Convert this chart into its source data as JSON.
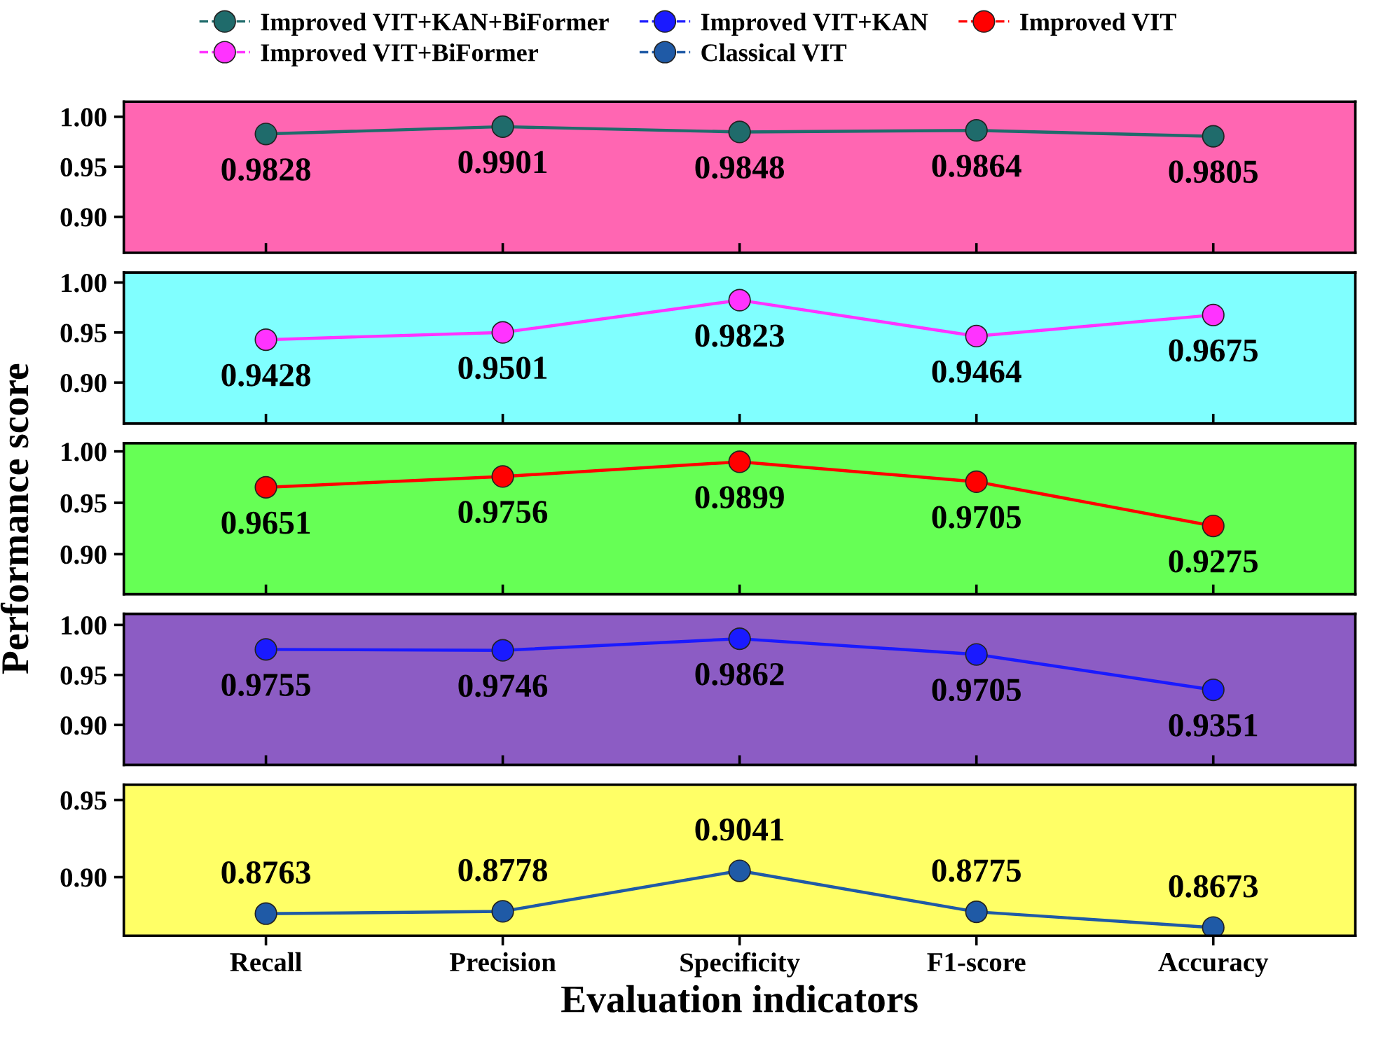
{
  "chart_data": [
    {
      "type": "line",
      "categories": [
        null,
        null,
        null,
        null,
        null
      ],
      "bands": [
        {
          "axis": "y",
          "from": 0.864,
          "to": 1.015,
          "color": "#ff66b2"
        }
      ],
      "ylim": [
        0.864,
        1.015
      ],
      "yticks": [
        {
          "value": 0.9,
          "label": "0.90"
        },
        {
          "value": 0.95,
          "label": "0.95"
        },
        {
          "value": 1.0,
          "label": "1.00"
        }
      ],
      "tick_labels": "y",
      "data_labels": true,
      "marker": "circle",
      "line_style": "solid",
      "grid": false,
      "legend": "top",
      "series": [
        {
          "name": "Improved VIT+KAN+BiFormer",
          "color": "#1f6b6b",
          "values": [
            0.9828,
            0.9901,
            0.9848,
            0.9864,
            0.9805
          ]
        }
      ]
    },
    {
      "type": "line",
      "categories": [
        null,
        null,
        null,
        null,
        null
      ],
      "bands": [
        {
          "axis": "y",
          "from": 0.859,
          "to": 1.01,
          "color": "#80ffff"
        }
      ],
      "ylim": [
        0.859,
        1.01
      ],
      "yticks": [
        {
          "value": 0.9,
          "label": "0.90"
        },
        {
          "value": 0.95,
          "label": "0.95"
        },
        {
          "value": 1.0,
          "label": "1.00"
        }
      ],
      "tick_labels": "y",
      "data_labels": true,
      "marker": "circle",
      "line_style": "solid",
      "grid": false,
      "legend": "top",
      "series": [
        {
          "name": "Improved VIT+BiFormer",
          "color": "#ff33ff",
          "values": [
            0.9428,
            0.9501,
            0.9823,
            0.9464,
            0.9675
          ]
        }
      ]
    },
    {
      "type": "line",
      "categories": [
        null,
        null,
        null,
        null,
        null
      ],
      "bands": [
        {
          "axis": "y",
          "from": 0.861,
          "to": 1.008,
          "color": "#66ff55"
        }
      ],
      "ylabel": "Performance score",
      "ylim": [
        0.861,
        1.008
      ],
      "yticks": [
        {
          "value": 0.9,
          "label": "0.90"
        },
        {
          "value": 0.95,
          "label": "0.95"
        },
        {
          "value": 1.0,
          "label": "1.00"
        }
      ],
      "tick_labels": "y",
      "data_labels": true,
      "marker": "circle",
      "line_style": "solid",
      "grid": false,
      "legend": "top",
      "series": [
        {
          "name": "Improved VIT",
          "color": "#ff0000",
          "values": [
            0.9651,
            0.9756,
            0.9899,
            0.9705,
            0.9275
          ]
        }
      ]
    },
    {
      "type": "line",
      "categories": [
        null,
        null,
        null,
        null,
        null
      ],
      "bands": [
        {
          "axis": "y",
          "from": 0.86,
          "to": 1.011,
          "color": "#8c5cc4"
        }
      ],
      "ylim": [
        0.86,
        1.011
      ],
      "yticks": [
        {
          "value": 0.9,
          "label": "0.90"
        },
        {
          "value": 0.95,
          "label": "0.95"
        },
        {
          "value": 1.0,
          "label": "1.00"
        }
      ],
      "tick_labels": "y",
      "data_labels": true,
      "marker": "circle",
      "line_style": "solid",
      "grid": false,
      "legend": "top",
      "series": [
        {
          "name": "Improved VIT+KAN",
          "color": "#1a1aff",
          "values": [
            0.9755,
            0.9746,
            0.9862,
            0.9705,
            0.9351
          ]
        }
      ]
    },
    {
      "type": "line",
      "categories": [
        "Recall",
        "Precision",
        "Specificity",
        "F1-score",
        "Accuracy"
      ],
      "bands": [
        {
          "axis": "y",
          "from": 0.862,
          "to": 0.96,
          "color": "#ffff66"
        }
      ],
      "xlabel": "Evaluation indicators",
      "ylim": [
        0.862,
        0.96
      ],
      "yticks": [
        {
          "value": 0.9,
          "label": "0.90"
        },
        {
          "value": 0.95,
          "label": "0.95"
        }
      ],
      "data_labels": true,
      "marker": "circle",
      "line_style": "solid",
      "grid": false,
      "legend": "top",
      "series": [
        {
          "name": "Classical VIT",
          "color": "#1f5aa6",
          "values": [
            0.8763,
            0.8778,
            0.9041,
            0.8775,
            0.8673
          ]
        }
      ]
    }
  ]
}
